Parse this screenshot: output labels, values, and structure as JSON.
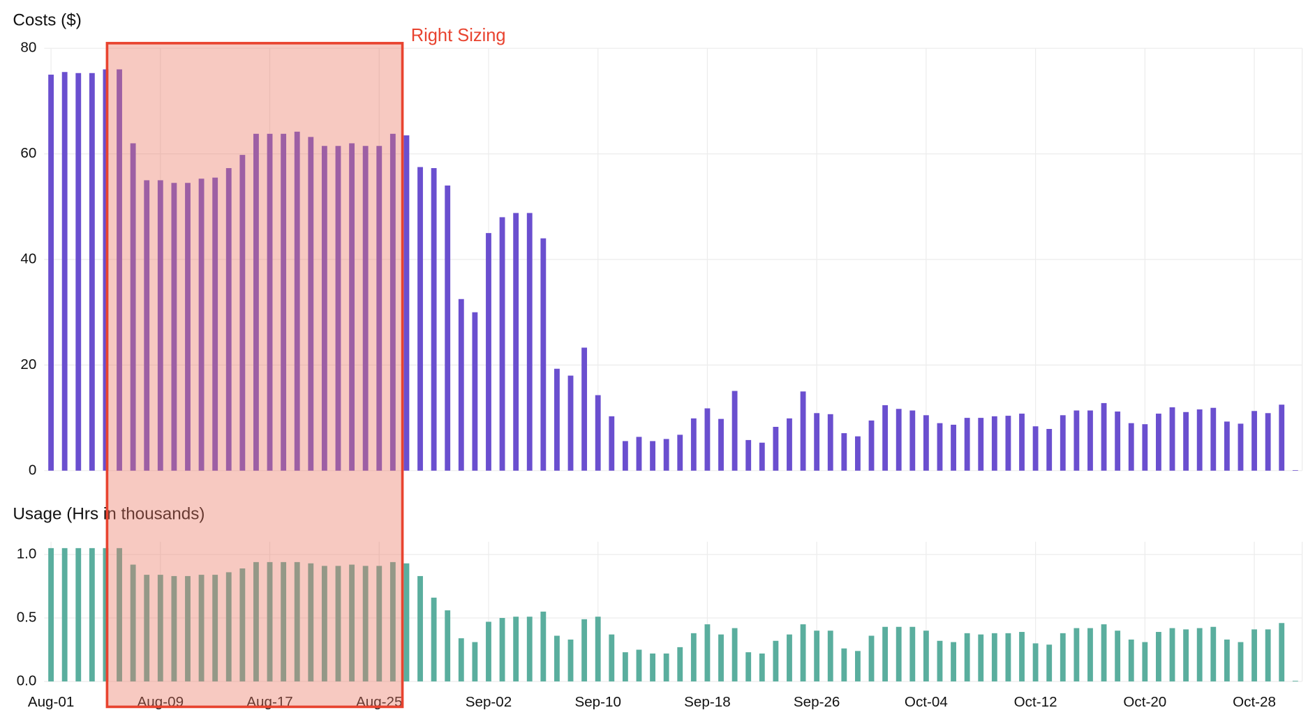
{
  "chart_data": [
    {
      "type": "bar",
      "title": "Costs ($)",
      "annotation": "Right Sizing",
      "color": "#6a4fcf",
      "grid": true,
      "ylim": [
        0,
        80
      ],
      "yticks": [
        0,
        20,
        40,
        60,
        80
      ],
      "values": [
        75,
        75.5,
        75.3,
        75.3,
        76,
        76,
        62,
        55,
        55,
        54.5,
        54.5,
        55.3,
        55.5,
        57.3,
        59.8,
        63.8,
        63.8,
        63.8,
        64.2,
        63.2,
        61.5,
        61.5,
        62,
        61.5,
        61.5,
        63.8,
        63.5,
        57.5,
        57.3,
        54,
        32.5,
        30,
        45,
        48,
        48.8,
        48.8,
        44,
        19.3,
        18,
        23.3,
        14.3,
        10.3,
        5.6,
        6.4,
        5.6,
        6,
        6.8,
        9.9,
        11.8,
        9.8,
        15.1,
        5.8,
        5.3,
        8.3,
        9.9,
        15,
        10.9,
        10.7,
        7.1,
        6.5,
        9.5,
        12.4,
        11.7,
        11.4,
        10.5,
        9,
        8.7,
        10,
        10,
        10.3,
        10.4,
        10.8,
        8.4,
        7.9,
        10.5,
        11.4,
        11.4,
        12.8,
        11.2,
        9,
        8.8,
        10.8,
        12,
        11.1,
        11.6,
        11.9,
        9.3,
        8.9,
        11.3,
        10.9,
        12.5,
        0.1
      ]
    },
    {
      "type": "bar",
      "title": "Usage (Hrs in thousands)",
      "color": "#5aae9e",
      "grid": true,
      "ylim": [
        0,
        1.1
      ],
      "yticks": [
        {
          "value": 0,
          "label": "0.0"
        },
        {
          "value": 0.5,
          "label": "0.5"
        },
        {
          "value": 1,
          "label": "1.0"
        }
      ],
      "categories": [
        "Aug-01",
        null,
        null,
        null,
        null,
        null,
        null,
        null,
        "Aug-09",
        null,
        null,
        null,
        null,
        null,
        null,
        null,
        "Aug-17",
        null,
        null,
        null,
        null,
        null,
        null,
        null,
        "Aug-25",
        null,
        null,
        null,
        null,
        null,
        null,
        null,
        "Sep-02",
        null,
        null,
        null,
        null,
        null,
        null,
        null,
        "Sep-10",
        null,
        null,
        null,
        null,
        null,
        null,
        null,
        "Sep-18",
        null,
        null,
        null,
        null,
        null,
        null,
        null,
        "Sep-26",
        null,
        null,
        null,
        null,
        null,
        null,
        null,
        "Oct-04",
        null,
        null,
        null,
        null,
        null,
        null,
        null,
        "Oct-12",
        null,
        null,
        null,
        null,
        null,
        null,
        null,
        "Oct-20",
        null,
        null,
        null,
        null,
        null,
        null,
        null,
        "Oct-28",
        null,
        null,
        null
      ],
      "values": [
        1.05,
        1.05,
        1.05,
        1.05,
        1.05,
        1.05,
        0.92,
        0.84,
        0.84,
        0.83,
        0.83,
        0.84,
        0.84,
        0.86,
        0.89,
        0.94,
        0.94,
        0.94,
        0.94,
        0.93,
        0.91,
        0.91,
        0.92,
        0.91,
        0.91,
        0.94,
        0.93,
        0.83,
        0.66,
        0.56,
        0.34,
        0.31,
        0.47,
        0.5,
        0.51,
        0.51,
        0.55,
        0.36,
        0.33,
        0.49,
        0.51,
        0.37,
        0.23,
        0.25,
        0.22,
        0.22,
        0.27,
        0.38,
        0.45,
        0.37,
        0.42,
        0.23,
        0.22,
        0.32,
        0.37,
        0.45,
        0.4,
        0.4,
        0.26,
        0.24,
        0.36,
        0.43,
        0.43,
        0.43,
        0.4,
        0.32,
        0.31,
        0.38,
        0.37,
        0.38,
        0.38,
        0.39,
        0.3,
        0.29,
        0.38,
        0.42,
        0.42,
        0.45,
        0.4,
        0.33,
        0.31,
        0.39,
        0.42,
        0.41,
        0.42,
        0.43,
        0.33,
        0.31,
        0.41,
        0.41,
        0.46,
        0.005
      ]
    }
  ]
}
